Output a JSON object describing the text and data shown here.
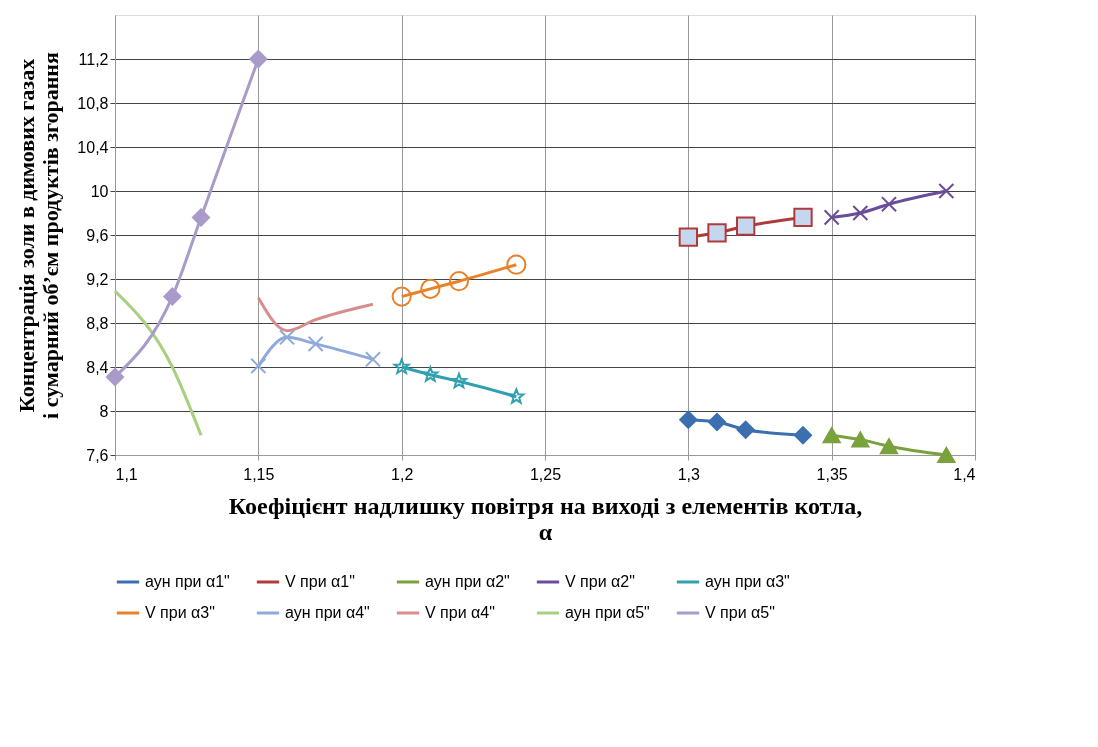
{
  "chart_data": {
    "type": "line",
    "xlabel": "Коефіцієнт надлишку повітря  на виході з елементів котла, α",
    "ylabel": "Концентрація золи в димових газах і сумарний об’єм продуктів згорання",
    "xlim": [
      1.1,
      1.4
    ],
    "xticks": [
      {
        "value": 1.1,
        "label": "1,1"
      },
      {
        "value": 1.15,
        "label": "1,15"
      },
      {
        "value": 1.2,
        "label": "1,2"
      },
      {
        "value": 1.25,
        "label": "1,25"
      },
      {
        "value": 1.3,
        "label": "1,3"
      },
      {
        "value": 1.35,
        "label": "1,35"
      },
      {
        "value": 1.4,
        "label": "1,4"
      }
    ],
    "ylim": [
      7.6,
      11.6
    ],
    "yticks": [
      {
        "value": 7.6,
        "label": "7,6"
      },
      8,
      {
        "value": 8.4,
        "label": "8,4"
      },
      {
        "value": 8.8,
        "label": "8,8"
      },
      {
        "value": 9.2,
        "label": "9,2"
      },
      {
        "value": 9.6,
        "label": "9,6"
      },
      10,
      {
        "value": 10.4,
        "label": "10,4"
      },
      {
        "value": 10.8,
        "label": "10,8"
      },
      {
        "value": 11.2,
        "label": "11,2"
      }
    ],
    "grid": true,
    "legend": "bottom",
    "line_style": "solid",
    "series": [
      {
        "name": "аун при α1\"",
        "color": "#3c6fb0",
        "marker": "diamond",
        "x": [
          1.3,
          1.31,
          1.32,
          1.34
        ],
        "values": [
          7.92,
          7.9,
          7.83,
          7.78
        ]
      },
      {
        "name": "V при α1\"",
        "color": "#b03a3a",
        "marker": "square",
        "x": [
          1.3,
          1.31,
          1.32,
          1.34
        ],
        "values": [
          9.58,
          9.62,
          9.68,
          9.76
        ]
      },
      {
        "name": "аун при α2\"",
        "color": "#7aa23c",
        "marker": "triangle",
        "x": [
          1.35,
          1.36,
          1.37,
          1.39
        ],
        "values": [
          7.78,
          7.74,
          7.68,
          7.6
        ]
      },
      {
        "name": "V при α2\"",
        "color": "#6b4c9a",
        "marker": "cross",
        "x": [
          1.35,
          1.36,
          1.37,
          1.39
        ],
        "values": [
          9.76,
          9.8,
          9.88,
          10.0
        ]
      },
      {
        "name": "аун при α3\"",
        "color": "#31a0b0",
        "marker": "star",
        "x": [
          1.2,
          1.21,
          1.22,
          1.24
        ],
        "values": [
          8.4,
          8.33,
          8.27,
          8.13
        ]
      },
      {
        "name": "V при α3\"",
        "color": "#e8822a",
        "marker": "circle",
        "x": [
          1.2,
          1.21,
          1.22,
          1.24
        ],
        "values": [
          9.04,
          9.11,
          9.18,
          9.33
        ]
      },
      {
        "name": "аун при α4\"",
        "color": "#8eaadb",
        "marker": "cross",
        "x": [
          1.15,
          1.16,
          1.17,
          1.19
        ],
        "values": [
          8.41,
          8.67,
          8.61,
          8.47
        ]
      },
      {
        "name": "V при α4\"",
        "color": "#d98c8c",
        "marker": "none",
        "x": [
          1.15,
          1.16,
          1.17,
          1.19
        ],
        "values": [
          9.03,
          8.73,
          8.83,
          8.97
        ]
      },
      {
        "name": "аун при α5\"",
        "color": "#a9cf80",
        "marker": "none",
        "x": [
          1.1,
          1.12,
          1.13
        ],
        "values": [
          9.09,
          8.4,
          7.78
        ]
      },
      {
        "name": "V при α5\"",
        "color": "#a99bc9",
        "marker": "diamond",
        "x": [
          1.1,
          1.12,
          1.13,
          1.15
        ],
        "values": [
          8.31,
          9.04,
          9.76,
          11.2
        ]
      }
    ]
  }
}
